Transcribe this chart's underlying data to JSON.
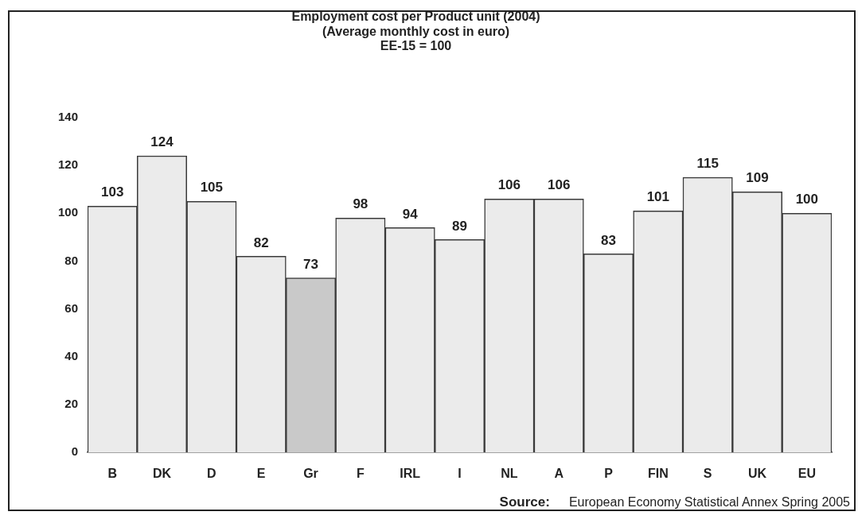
{
  "chart_data": {
    "type": "bar",
    "title": "Employment cost per Product unit (2004)",
    "subtitle": "(Average monthly cost in euro)\nEE-15 = 100",
    "categories": [
      "B",
      "DK",
      "D",
      "E",
      "Gr",
      "F",
      "IRL",
      "I",
      "NL",
      "A",
      "P",
      "FIN",
      "S",
      "UK",
      "EU"
    ],
    "values": [
      103,
      124,
      105,
      82,
      73,
      98,
      94,
      89,
      106,
      106,
      83,
      101,
      115,
      109,
      100
    ],
    "colors": [
      "#ebebeb",
      "#ebebeb",
      "#ebebeb",
      "#ebebeb",
      "#c9c9c9",
      "#ebebeb",
      "#ebebeb",
      "#ebebeb",
      "#ebebeb",
      "#ebebeb",
      "#ebebeb",
      "#ebebeb",
      "#ebebeb",
      "#ebebeb",
      "#ebebeb"
    ],
    "ylim": [
      0,
      140
    ],
    "yticks": [
      0,
      20,
      40,
      60,
      80,
      100,
      120,
      140
    ],
    "data_labels": true,
    "annotations": [
      "Source: European Economy Statistical Annex Spring 2005"
    ]
  }
}
